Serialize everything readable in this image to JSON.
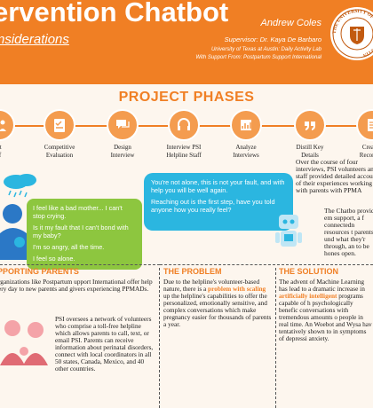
{
  "header": {
    "title": "ervention Chatbot",
    "subtitle": "nsiderations",
    "author": "Andrew Coles",
    "supervisor": "Supervisor: Dr. Kaya De Barbaro",
    "affiliation": "University of Texas at Austin: Daily Activity Lab",
    "support": "With Support From: Postpartum Support International",
    "seal_text": "THE UNIVERSITY OF TEXAS AT AUSTIN"
  },
  "phases": {
    "title": "PROJECT PHASES",
    "items": [
      {
        "label": "nt\nff",
        "icon": "people-icon"
      },
      {
        "label": "Competitive\nEvaluation",
        "icon": "checklist-icon"
      },
      {
        "label": "Design\nInterview",
        "icon": "chat-icon"
      },
      {
        "label": "Interview PSI\nHelpline Staff",
        "icon": "headset-icon"
      },
      {
        "label": "Analyze\nInterviews",
        "icon": "chart-icon"
      },
      {
        "label": "Distill Key\nDetails",
        "icon": "quote-icon"
      },
      {
        "label": "Create I\nRecomme",
        "icon": "doc-icon"
      }
    ]
  },
  "chat": {
    "user_lines": [
      "I feel like a bad mother... I can't stop crying.",
      "Is it my fault that I can't bond with my baby?",
      "I'm so angry, all the time.",
      "I feel so alone."
    ],
    "bot_lines": [
      "You're not alone, this is not your fault, and with help you will be well again.",
      "Reaching out is the first step, have you told anyone how you really feel?"
    ]
  },
  "intro_text": "Over the course of four interviews, PSI volunteers and staff provided detailed accounts of their experiences working with parents with PPMA",
  "chatbot_text": "The Chatbo provide em support, a f connectedn resources t parents und what they'r through, an to be hones open.",
  "sections": {
    "supporting": {
      "heading": "PPORTING PARENTS",
      "p1": "rganizations like Postpartum upport International offer help ery day to new parents and givers experiencing PPMADs.",
      "p2": "PSI oversees a network of volunteers who comprise a toll-free helpline which allows parents to call, text, or email PSI. Parents can receive information about perinatal disorders, connect with local coordinators in all 50 states, Canada, Mexico, and 40 other countries."
    },
    "problem": {
      "heading": "THE PROBLEM",
      "text_a": "Due to the helpline's volunteer-based nature, there is a ",
      "highlight": "problem with scaling",
      "text_b": " up the helpline's capabilities to offer the personalized, emotionally sensitive, and complex conversations which make pregnancy easier for thousands of parents a year."
    },
    "solution": {
      "heading": "THE SOLUTION",
      "text_a": "The advent of Machine Learning has  lead to a dramatic increase in ",
      "highlight": "artificially intelligent",
      "text_b": " programs capable of h psychologically benefic conversations with tremendous amounts o people in real time. An Woebot and Wysa hav tentatively shown to in symptoms of depressi anxiety."
    }
  },
  "colors": {
    "accent": "#f07f24",
    "green": "#8dc63f",
    "blue": "#2bb6e0"
  }
}
